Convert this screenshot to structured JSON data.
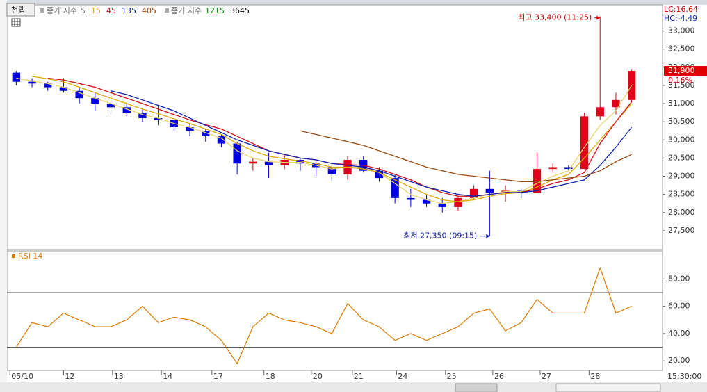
{
  "chart_data": {
    "type": "candlestick",
    "tag": "천랩",
    "lc_label": "LC:16.64",
    "hc_label": "HC:-4.49",
    "current_price": {
      "value": 31900,
      "label": "31,900"
    },
    "change_label": "0.16%",
    "high_annotation": "최고 33,400 (11:25)",
    "low_annotation": "최저 27,350 (09:15)",
    "time_label": "15:30:00",
    "ylim": [
      27000,
      33700
    ],
    "yticks": [
      {
        "value": 27500,
        "label": "27,500"
      },
      {
        "value": 28000,
        "label": "28,000"
      },
      {
        "value": 28500,
        "label": "28,500"
      },
      {
        "value": 29000,
        "label": "29,000"
      },
      {
        "value": 29500,
        "label": "29,500"
      },
      {
        "value": 30000,
        "label": "30,000"
      },
      {
        "value": 30500,
        "label": "30,500"
      },
      {
        "value": 31000,
        "label": "31,000"
      },
      {
        "value": 31500,
        "label": "31,500"
      },
      {
        "value": 32000,
        "label": "32,000"
      },
      {
        "value": 32500,
        "label": "32,500"
      },
      {
        "value": 33000,
        "label": "33,000"
      }
    ],
    "xlim": [
      0,
      40
    ],
    "xticks": [
      {
        "value": 0.1,
        "label": "05/10"
      },
      {
        "value": 3.5,
        "label": "12"
      },
      {
        "value": 6.6,
        "label": "13"
      },
      {
        "value": 9.7,
        "label": "14"
      },
      {
        "value": 12.9,
        "label": "17"
      },
      {
        "value": 16.2,
        "label": "18"
      },
      {
        "value": 19.2,
        "label": "20"
      },
      {
        "value": 21.8,
        "label": "21"
      },
      {
        "value": 24.6,
        "label": "24"
      },
      {
        "value": 27.7,
        "label": "25"
      },
      {
        "value": 30.7,
        "label": "26"
      },
      {
        "value": 33.7,
        "label": "27"
      },
      {
        "value": 36.8,
        "label": "28"
      }
    ],
    "up_color": "#e0001a",
    "down_color": "#0000e0",
    "candles": {
      "open": [
        31850,
        31600,
        31550,
        31450,
        31350,
        31150,
        31000,
        30900,
        30750,
        30600,
        30550,
        30350,
        30250,
        30100,
        29900,
        29350,
        29400,
        29300,
        29450,
        29350,
        29250,
        29050,
        29450,
        29150,
        28950,
        28400,
        28350,
        28250,
        28150,
        28400,
        28650,
        28550,
        28600,
        28550,
        29200,
        29250,
        29200,
        30650,
        30900,
        31100
      ],
      "high": [
        31900,
        31700,
        31600,
        31700,
        31450,
        31300,
        31250,
        31000,
        30850,
        30950,
        30600,
        30450,
        30300,
        30150,
        29950,
        29500,
        29650,
        29600,
        29500,
        29400,
        29350,
        29550,
        29550,
        29250,
        29050,
        28650,
        28500,
        28400,
        28450,
        28750,
        29150,
        28750,
        28650,
        29650,
        29350,
        29300,
        30750,
        33400,
        31300,
        31950
      ],
      "low": [
        31500,
        31450,
        31350,
        31300,
        31000,
        30800,
        30700,
        30650,
        30500,
        30400,
        30250,
        30100,
        29950,
        29800,
        29050,
        29150,
        28950,
        29200,
        29150,
        29000,
        28850,
        28900,
        29100,
        28850,
        28250,
        28150,
        28150,
        28000,
        28050,
        28350,
        27350,
        28300,
        28400,
        28550,
        29100,
        29150,
        29200,
        30550,
        30700,
        31050
      ],
      "close": [
        31600,
        31550,
        31450,
        31350,
        31150,
        31000,
        30900,
        30750,
        30600,
        30550,
        30350,
        30250,
        30100,
        29900,
        29350,
        29400,
        29300,
        29450,
        29350,
        29250,
        29050,
        29450,
        29150,
        28950,
        28400,
        28350,
        28250,
        28150,
        28400,
        28650,
        28550,
        28600,
        28550,
        29200,
        29250,
        29200,
        30650,
        30900,
        31100,
        31900
      ]
    },
    "legend_groups": [
      {
        "label": "종가 지수",
        "series": [
          {
            "name": "5",
            "color": "#e8d36a",
            "text_color": "#777777",
            "values": [
              31700,
              31620,
              31550,
              31450,
              31300,
              31150,
              31000,
              30850,
              30700,
              30600,
              30450,
              30350,
              30200,
              30050,
              29700,
              29500,
              29400,
              29380,
              29380,
              29300,
              29200,
              29250,
              29250,
              29100,
              28800,
              28500,
              28350,
              28250,
              28300,
              28400,
              28500,
              28580,
              28580,
              28800,
              29000,
              29150,
              29800,
              30400,
              30800,
              31500
            ]
          },
          {
            "name": "15",
            "color": "#e0a800",
            "text_color": "#e0a800",
            "values": [
              null,
              31750,
              31680,
              31600,
              31450,
              31300,
              31150,
              31000,
              30850,
              30720,
              30580,
              30450,
              30300,
              30150,
              29900,
              29700,
              29550,
              29480,
              29420,
              29350,
              29250,
              29250,
              29200,
              29100,
              28900,
              28700,
              28500,
              28350,
              28300,
              28350,
              28450,
              28520,
              28550,
              28700,
              28900,
              29050,
              29500,
              30000,
              30500,
              31000
            ]
          },
          {
            "name": "45",
            "color": "#d0101a",
            "text_color": "#d0101a",
            "values": [
              null,
              null,
              31700,
              31650,
              31550,
              31450,
              31300,
              31150,
              31000,
              30850,
              30700,
              30550,
              30420,
              30300,
              30100,
              29900,
              29700,
              29600,
              29500,
              29450,
              29350,
              29320,
              29300,
              29200,
              29050,
              28900,
              28700,
              28550,
              28450,
              28450,
              28500,
              28550,
              28550,
              28650,
              28800,
              28900,
              29100,
              29900,
              30500,
              31050
            ]
          },
          {
            "name": "135",
            "color": "#1020b0",
            "text_color": "#1020b0",
            "values": [
              null,
              null,
              null,
              null,
              null,
              null,
              31350,
              31250,
              31100,
              30950,
              30800,
              30600,
              30400,
              30200,
              30000,
              29850,
              29700,
              29600,
              29500,
              29450,
              29350,
              29300,
              29250,
              29150,
              29000,
              28850,
              28700,
              28600,
              28500,
              28450,
              28500,
              28550,
              28550,
              28600,
              28700,
              28800,
              28900,
              29300,
              29800,
              30350
            ]
          },
          {
            "name": "405",
            "color": "#9a4a10",
            "text_color": "#9a4a10",
            "values": [
              null,
              null,
              null,
              null,
              null,
              null,
              null,
              null,
              null,
              null,
              null,
              null,
              null,
              null,
              null,
              null,
              null,
              null,
              30250,
              30150,
              30050,
              29950,
              29850,
              29700,
              29550,
              29400,
              29250,
              29150,
              29050,
              29000,
              28950,
              28900,
              28850,
              28850,
              28900,
              28950,
              29000,
              29150,
              29400,
              29600
            ]
          }
        ]
      },
      {
        "label": "종가 지수",
        "series": [
          {
            "name": "1215",
            "color": "#008800",
            "text_color": "#008800",
            "values": []
          },
          {
            "name": "3645",
            "color": "#000000",
            "text_color": "#000000",
            "values": []
          }
        ]
      }
    ],
    "rsi": {
      "name": "RSI 14",
      "color": "#e07800",
      "values": [
        30,
        48,
        45,
        55,
        50,
        45,
        45,
        50,
        60,
        48,
        52,
        50,
        45,
        35,
        18,
        45,
        55,
        50,
        48,
        45,
        40,
        62,
        50,
        45,
        35,
        40,
        35,
        40,
        45,
        55,
        58,
        42,
        48,
        65,
        55,
        55,
        55,
        88,
        55,
        60
      ],
      "ylim": [
        13.5,
        100
      ],
      "yticks": [
        {
          "value": 20,
          "label": "20.00"
        },
        {
          "value": 40,
          "label": "40.00"
        },
        {
          "value": 60,
          "label": "60.00"
        },
        {
          "value": 80,
          "label": "80.00"
        }
      ],
      "levels": [
        30,
        70
      ]
    }
  }
}
